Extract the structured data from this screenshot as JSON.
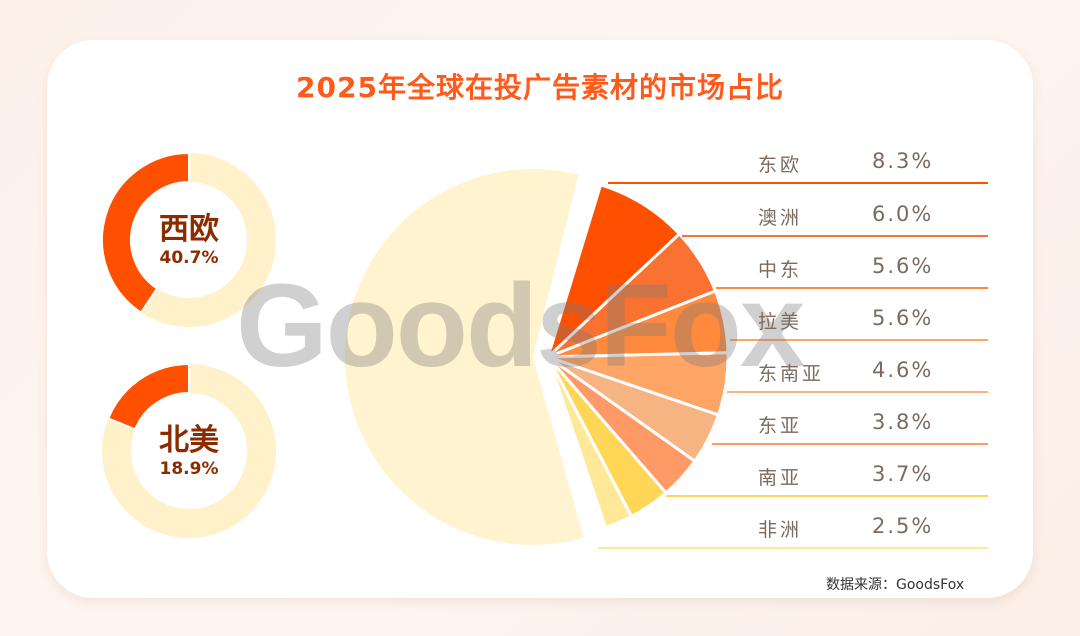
{
  "watermark": "GoodsFox",
  "chart_data": {
    "type": "pie",
    "title": "2025年全球在投广告素材的市场占比",
    "source": "数据来源：GoodsFox",
    "highlights": [
      {
        "label": "西欧",
        "value": 40.7,
        "display": "40.7%",
        "color": "#ff5000",
        "track": "#fff1c9"
      },
      {
        "label": "北美",
        "value": 18.9,
        "display": "18.9%",
        "color": "#ff5000",
        "track": "#fff1c9"
      }
    ],
    "remainder_color": "#fff3d0",
    "slices": [
      {
        "label": "东欧",
        "value": 8.3,
        "display": "8.3%",
        "color": "#ff5000"
      },
      {
        "label": "澳洲",
        "value": 6.0,
        "display": "6.0%",
        "color": "#f97231"
      },
      {
        "label": "中东",
        "value": 5.6,
        "display": "5.6%",
        "color": "#ff8a3d"
      },
      {
        "label": "拉美",
        "value": 5.6,
        "display": "5.6%",
        "color": "#ffa566"
      },
      {
        "label": "东南亚",
        "value": 4.6,
        "display": "4.6%",
        "color": "#f5b482"
      },
      {
        "label": "东亚",
        "value": 3.8,
        "display": "3.8%",
        "color": "#ff9966"
      },
      {
        "label": "南亚",
        "value": 3.7,
        "display": "3.7%",
        "color": "#ffd655"
      },
      {
        "label": "非洲",
        "value": 2.5,
        "display": "2.5%",
        "color": "#ffe999"
      }
    ]
  }
}
